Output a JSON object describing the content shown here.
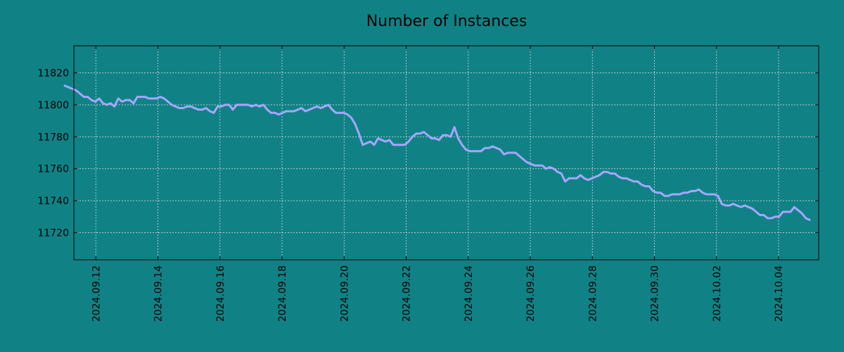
{
  "chart_data": {
    "type": "line",
    "title": "Number of Instances",
    "xlabel": "",
    "ylabel": "",
    "x_start": "2024-09-11",
    "x_end": "2024-10-05",
    "xlim": [
      "2024-09-11T07:00",
      "2024-10-05T07:00"
    ],
    "ylim": [
      11703,
      11837
    ],
    "x_tick_labels": [
      "2024.09.12",
      "2024.09.14",
      "2024.09.16",
      "2024.09.18",
      "2024.09.20",
      "2024.09.22",
      "2024.09.24",
      "2024.09.26",
      "2024.09.28",
      "2024.09.30",
      "2024.10.02",
      "2024.10.04"
    ],
    "y_ticks": [
      11720,
      11740,
      11760,
      11780,
      11800,
      11820
    ],
    "grid": true,
    "colors": {
      "background": "#108285",
      "plot_area": "#108285",
      "line": "#a6a6ff",
      "grid": "#c8d8d8"
    },
    "series": [
      {
        "values": [
          11812,
          11811,
          11810,
          11809,
          11807,
          11805,
          11805,
          11803,
          11802,
          11804,
          11801,
          11800,
          11801,
          11799,
          11804,
          11802,
          11803,
          11803,
          11801,
          11805,
          11805,
          11805,
          11804,
          11804,
          11804,
          11805,
          11804,
          11802,
          11800,
          11799,
          11798,
          11798,
          11799,
          11799,
          11798,
          11797,
          11797,
          11798,
          11796,
          11795,
          11799,
          11799,
          11800,
          11800,
          11797,
          11800,
          11800,
          11800,
          11800,
          11799,
          11800,
          11799,
          11800,
          11797,
          11795,
          11795,
          11794,
          11795,
          11796,
          11796,
          11796,
          11797,
          11798,
          11796,
          11797,
          11798,
          11799,
          11798,
          11799,
          11800,
          11797,
          11795,
          11795,
          11795,
          11794,
          11792,
          11788,
          11782,
          11775,
          11776,
          11777,
          11775,
          11779,
          11778,
          11777,
          11778,
          11775,
          11775,
          11775,
          11775,
          11777,
          11780,
          11782,
          11782,
          11783,
          11781,
          11779,
          11779,
          11778,
          11781,
          11781,
          11780,
          11786,
          11779,
          11775,
          11772,
          11771,
          11771,
          11771,
          11771,
          11773,
          11773,
          11774,
          11773,
          11772,
          11769,
          11770,
          11770,
          11770,
          11768,
          11766,
          11764,
          11763,
          11762,
          11762,
          11762,
          11760,
          11761,
          11760,
          11758,
          11757,
          11752,
          11754,
          11754,
          11754,
          11756,
          11754,
          11753,
          11754,
          11755,
          11756,
          11758,
          11758,
          11757,
          11757,
          11755,
          11754,
          11754,
          11753,
          11752,
          11752,
          11750,
          11749,
          11749,
          11746,
          11745,
          11745,
          11743,
          11743,
          11744,
          11744,
          11744,
          11745,
          11745,
          11746,
          11746,
          11747,
          11745,
          11744,
          11744,
          11744,
          11743,
          11738,
          11737,
          11737,
          11738,
          11737,
          11736,
          11737,
          11736,
          11735,
          11733,
          11731,
          11731,
          11729,
          11729,
          11730,
          11730,
          11733,
          11733,
          11733,
          11736,
          11734,
          11732,
          11729,
          11728
        ]
      }
    ]
  }
}
